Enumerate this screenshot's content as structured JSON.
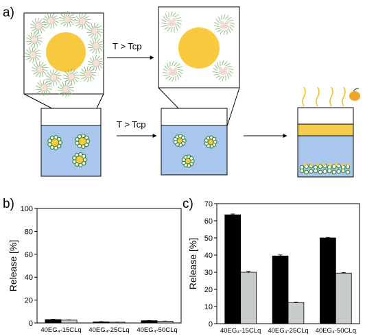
{
  "panels": {
    "a": {
      "label": "a)"
    },
    "b": {
      "label": "b)"
    },
    "c": {
      "label": "c)"
    }
  },
  "schematic": {
    "arrow_top_label": "T > Tcp",
    "arrow_bottom_label": "T > Tcp"
  },
  "colors": {
    "core": "#f9c940",
    "water": "#a9c6ef",
    "corona": "#d3e8ad",
    "micelle_fill": "#f8e0d6",
    "dark_bar": "#000000",
    "light_bar": "#c7ccca",
    "top_layer": "#f4cd4e",
    "vapor": "#f1c12f",
    "flame": "#f0a728"
  },
  "chart_data": [
    {
      "type": "bar",
      "panel": "b",
      "categories": [
        "40EG₄-15CLq",
        "40EG₄-25CLq",
        "40EG₄-50CLq"
      ],
      "series": [
        {
          "values": [
            3.0,
            1.0,
            2.0
          ],
          "errors": [
            0.3,
            0.2,
            0.2
          ]
        },
        {
          "values": [
            2.5,
            0.7,
            1.5
          ],
          "errors": [
            0.2,
            0.1,
            0.2
          ]
        }
      ],
      "ylabel": "Release [%]",
      "ylim": [
        0,
        100
      ],
      "yticks": [
        0,
        20,
        40,
        60,
        80,
        100
      ],
      "grid": false
    },
    {
      "type": "bar",
      "panel": "c",
      "categories": [
        "40EG₄-15CLq",
        "40EG₄-25CLq",
        "40EG₄-50CLq"
      ],
      "series": [
        {
          "values": [
            63.5,
            39.5,
            50.0
          ],
          "errors": [
            0.5,
            0.6,
            0.3
          ]
        },
        {
          "values": [
            30.0,
            12.3,
            29.5
          ],
          "errors": [
            0.5,
            0.3,
            0.3
          ]
        }
      ],
      "ylabel": "Release [%]",
      "ylim": [
        0,
        70
      ],
      "yticks": [
        0,
        10,
        20,
        30,
        40,
        50,
        60,
        70
      ],
      "grid": false
    }
  ]
}
